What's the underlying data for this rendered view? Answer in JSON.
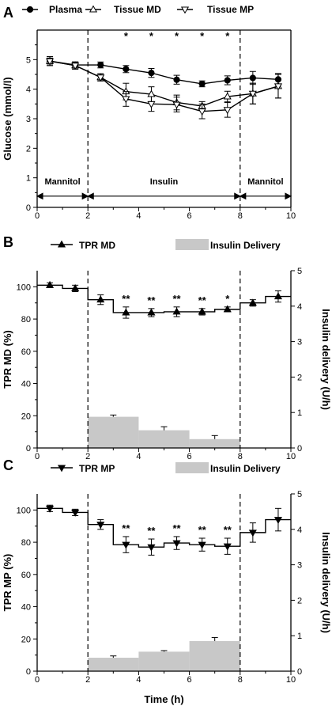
{
  "colors": {
    "line": "#000000",
    "bar": "#c8c8c8",
    "marker_open": "#ffffff",
    "marker_filled": "#000000"
  },
  "chart_data": [
    {
      "panel": "A",
      "type": "line",
      "ylabel": "Glucose (mmol/l)",
      "xlim": [
        0,
        10
      ],
      "ylim": [
        0,
        6
      ],
      "xticks": [
        "0",
        "2",
        "4",
        "6",
        "8",
        "10"
      ],
      "yticks": [
        "0",
        "1",
        "2",
        "3",
        "4",
        "5"
      ],
      "x": [
        0.5,
        1.5,
        2.5,
        3.5,
        4.5,
        5.5,
        6.5,
        7.5,
        8.5,
        9.5
      ],
      "series": [
        {
          "name": "Plasma",
          "marker": "circle",
          "values": [
            4.95,
            4.82,
            4.82,
            4.68,
            4.55,
            4.32,
            4.18,
            4.3,
            4.38,
            4.33
          ],
          "errors": [
            0.1,
            0.1,
            0.1,
            0.12,
            0.15,
            0.15,
            0.1,
            0.15,
            0.22,
            0.2
          ]
        },
        {
          "name": "Tissue MD",
          "marker": "triangle-up",
          "values": [
            4.95,
            4.8,
            4.4,
            3.92,
            3.83,
            3.55,
            3.43,
            3.75,
            3.85,
            4.1
          ],
          "errors": [
            0.15,
            0.12,
            0.12,
            0.28,
            0.25,
            0.25,
            0.15,
            0.18,
            0.35,
            0.4
          ]
        },
        {
          "name": "Tissue MP",
          "marker": "triangle-down",
          "values": [
            4.95,
            4.8,
            4.4,
            3.67,
            3.5,
            3.48,
            3.25,
            3.3,
            3.85,
            4.1
          ],
          "errors": [
            0.15,
            0.12,
            0.12,
            0.25,
            0.25,
            0.25,
            0.25,
            0.25,
            0.35,
            0.4
          ]
        }
      ],
      "significance": [
        {
          "x": 3.5,
          "label": "*"
        },
        {
          "x": 4.5,
          "label": "*"
        },
        {
          "x": 5.5,
          "label": "*"
        },
        {
          "x": 6.5,
          "label": "*"
        },
        {
          "x": 7.5,
          "label": "*"
        }
      ],
      "phases": [
        {
          "label": "Mannitol",
          "from": 0,
          "to": 2
        },
        {
          "label": "Insulin",
          "from": 2,
          "to": 8
        },
        {
          "label": "Mannitol",
          "from": 8,
          "to": 10
        }
      ],
      "vlines": [
        2,
        8
      ]
    },
    {
      "panel": "B",
      "type": "line+bar",
      "ylabel": "TPR MD (%)",
      "y2label": "Insulin delivery (U/h)",
      "xlim": [
        0,
        10
      ],
      "ylim": [
        0,
        110
      ],
      "y2lim": [
        0,
        5
      ],
      "xticks": [
        "0",
        "2",
        "4",
        "6",
        "8",
        "10"
      ],
      "yticks": [
        "0",
        "20",
        "40",
        "60",
        "80",
        "100"
      ],
      "y2ticks": [
        "0",
        "1",
        "2",
        "3",
        "4",
        "5"
      ],
      "series": [
        {
          "name": "TPR MD",
          "marker": "triangle-up",
          "kind": "step",
          "x": [
            0.5,
            1.5,
            2.5,
            3.5,
            4.5,
            5.5,
            6.5,
            7.5,
            8.5,
            9.5
          ],
          "values": [
            101,
            99,
            92,
            84,
            84,
            84.5,
            84.5,
            86,
            90,
            94
          ],
          "errors": [
            1.5,
            2,
            3,
            3.5,
            2.5,
            3,
            2,
            1.5,
            2,
            3.5
          ]
        }
      ],
      "bars": {
        "name": "Insulin Delivery",
        "x_from": [
          2,
          4,
          6
        ],
        "x_to": [
          4,
          6,
          8
        ],
        "values": [
          0.88,
          0.5,
          0.25
        ],
        "errors": [
          0.05,
          0.1,
          0.1
        ]
      },
      "significance": [
        {
          "x": 3.5,
          "label": "**"
        },
        {
          "x": 4.5,
          "label": "**"
        },
        {
          "x": 5.5,
          "label": "**"
        },
        {
          "x": 6.5,
          "label": "**"
        },
        {
          "x": 7.5,
          "label": "*"
        }
      ],
      "vlines": [
        2,
        8
      ]
    },
    {
      "panel": "C",
      "type": "line+bar",
      "ylabel": "TPR MP (%)",
      "y2label": "Insulin delivery (U/h)",
      "xlabel": "Time (h)",
      "xlim": [
        0,
        10
      ],
      "ylim": [
        0,
        110
      ],
      "y2lim": [
        0,
        5
      ],
      "xticks": [
        "0",
        "2",
        "4",
        "6",
        "8",
        "10"
      ],
      "yticks": [
        "0",
        "20",
        "40",
        "60",
        "80",
        "100"
      ],
      "y2ticks": [
        "0",
        "1",
        "2",
        "3",
        "4",
        "5"
      ],
      "series": [
        {
          "name": "TPR MP",
          "marker": "triangle-down",
          "kind": "step",
          "x": [
            0.5,
            1.5,
            2.5,
            3.5,
            4.5,
            5.5,
            6.5,
            7.5,
            8.5,
            9.5
          ],
          "values": [
            101,
            98.5,
            91,
            78.5,
            77,
            79.5,
            78.5,
            77.5,
            86,
            94
          ],
          "errors": [
            2,
            2,
            3,
            5,
            5,
            4,
            4,
            5,
            6,
            7
          ]
        }
      ],
      "bars": {
        "name": "Insulin Delivery",
        "x_from": [
          2,
          4,
          6
        ],
        "x_to": [
          4,
          6,
          8
        ],
        "values": [
          0.38,
          0.55,
          0.85
        ],
        "errors": [
          0.05,
          0.03,
          0.1
        ]
      },
      "significance": [
        {
          "x": 3.5,
          "label": "**"
        },
        {
          "x": 4.5,
          "label": "**"
        },
        {
          "x": 5.5,
          "label": "**"
        },
        {
          "x": 6.5,
          "label": "**"
        },
        {
          "x": 7.5,
          "label": "**"
        }
      ],
      "vlines": [
        2,
        8
      ]
    }
  ]
}
